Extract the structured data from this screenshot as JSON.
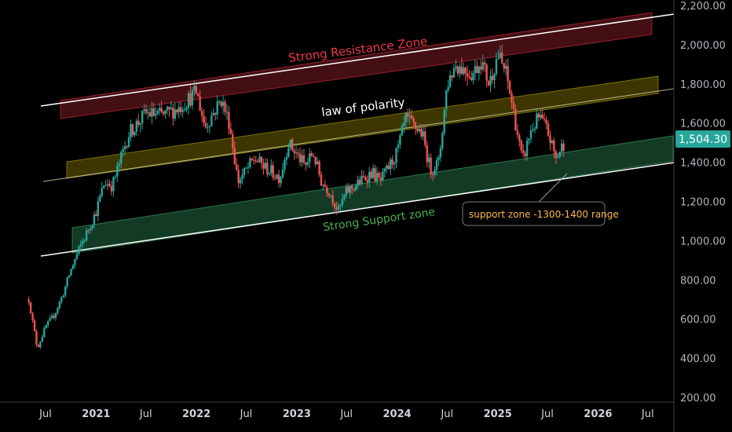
{
  "chart_data": {
    "type": "candlestick",
    "y_axis": {
      "range": [
        200,
        2200
      ],
      "ticks": [
        "2,200.00",
        "2,000.00",
        "1,800.00",
        "1,600.00",
        "1,400.00",
        "1,200.00",
        "1,000.00",
        "800.00",
        "600.00",
        "400.00",
        "200.00"
      ],
      "tick_values": [
        2200,
        2000,
        1800,
        1600,
        1400,
        1200,
        1000,
        800,
        600,
        400,
        200
      ]
    },
    "x_axis": {
      "ticks": [
        {
          "label": "Jul",
          "date": "2020-07",
          "year": false
        },
        {
          "label": "2021",
          "date": "2021-01",
          "year": true
        },
        {
          "label": "Jul",
          "date": "2021-07",
          "year": false
        },
        {
          "label": "2022",
          "date": "2022-01",
          "year": true
        },
        {
          "label": "Jul",
          "date": "2022-07",
          "year": false
        },
        {
          "label": "2023",
          "date": "2023-01",
          "year": true
        },
        {
          "label": "Jul",
          "date": "2023-07",
          "year": false
        },
        {
          "label": "2024",
          "date": "2024-01",
          "year": true
        },
        {
          "label": "Jul",
          "date": "2024-07",
          "year": false
        },
        {
          "label": "2025",
          "date": "2025-01",
          "year": true
        },
        {
          "label": "Jul",
          "date": "2025-07",
          "year": false
        },
        {
          "label": "2026",
          "date": "2026-01",
          "year": true
        },
        {
          "label": "Jul",
          "date": "2026-07",
          "year": false
        }
      ]
    },
    "last_price": {
      "label": "1,504.30",
      "value": 1504.3
    },
    "colors": {
      "up": "#26a69a",
      "down": "#ef5350",
      "resistance": "#f23645",
      "polarity": "#c9b400",
      "support": "#3cb371",
      "last_price_bg": "#26a69a",
      "callout": "#ffb74d"
    },
    "annotations": {
      "resistance": "Strong Resistance Zone",
      "polarity": "law of polarity",
      "support": "Strong Support zone",
      "callout": "support zone -1300-1400 range"
    },
    "price_path": [
      [
        "2020-05-01",
        700
      ],
      [
        "2020-06-01",
        450
      ],
      [
        "2020-07-01",
        560
      ],
      [
        "2020-08-01",
        620
      ],
      [
        "2020-09-01",
        720
      ],
      [
        "2020-10-01",
        850
      ],
      [
        "2020-11-01",
        960
      ],
      [
        "2020-12-01",
        1050
      ],
      [
        "2021-01-01",
        1150
      ],
      [
        "2021-02-01",
        1300
      ],
      [
        "2021-03-01",
        1280
      ],
      [
        "2021-04-01",
        1420
      ],
      [
        "2021-05-01",
        1550
      ],
      [
        "2021-06-01",
        1600
      ],
      [
        "2021-07-01",
        1650
      ],
      [
        "2021-09-01",
        1640
      ],
      [
        "2021-11-01",
        1680
      ],
      [
        "2022-01-01",
        1760
      ],
      [
        "2022-02-01",
        1580
      ],
      [
        "2022-04-01",
        1720
      ],
      [
        "2022-05-01",
        1600
      ],
      [
        "2022-06-01",
        1300
      ],
      [
        "2022-07-01",
        1360
      ],
      [
        "2022-08-01",
        1420
      ],
      [
        "2022-09-01",
        1380
      ],
      [
        "2022-11-01",
        1320
      ],
      [
        "2022-12-01",
        1500
      ],
      [
        "2023-02-01",
        1380
      ],
      [
        "2023-03-01",
        1450
      ],
      [
        "2023-04-01",
        1300
      ],
      [
        "2023-05-01",
        1250
      ],
      [
        "2023-06-01",
        1150
      ],
      [
        "2023-07-01",
        1250
      ],
      [
        "2023-08-01",
        1280
      ],
      [
        "2023-10-01",
        1350
      ],
      [
        "2023-11-01",
        1300
      ],
      [
        "2024-01-01",
        1450
      ],
      [
        "2024-02-01",
        1620
      ],
      [
        "2024-04-01",
        1550
      ],
      [
        "2024-05-01",
        1360
      ],
      [
        "2024-06-01",
        1400
      ],
      [
        "2024-07-01",
        1800
      ],
      [
        "2024-08-01",
        1900
      ],
      [
        "2024-10-01",
        1850
      ],
      [
        "2024-11-01",
        1920
      ],
      [
        "2024-12-01",
        1800
      ],
      [
        "2025-01-01",
        1950
      ],
      [
        "2025-02-01",
        1850
      ],
      [
        "2025-03-01",
        1650
      ],
      [
        "2025-04-01",
        1400
      ],
      [
        "2025-05-01",
        1560
      ],
      [
        "2025-06-01",
        1630
      ],
      [
        "2025-07-01",
        1560
      ],
      [
        "2025-08-01",
        1420
      ],
      [
        "2025-09-01",
        1504
      ]
    ]
  }
}
